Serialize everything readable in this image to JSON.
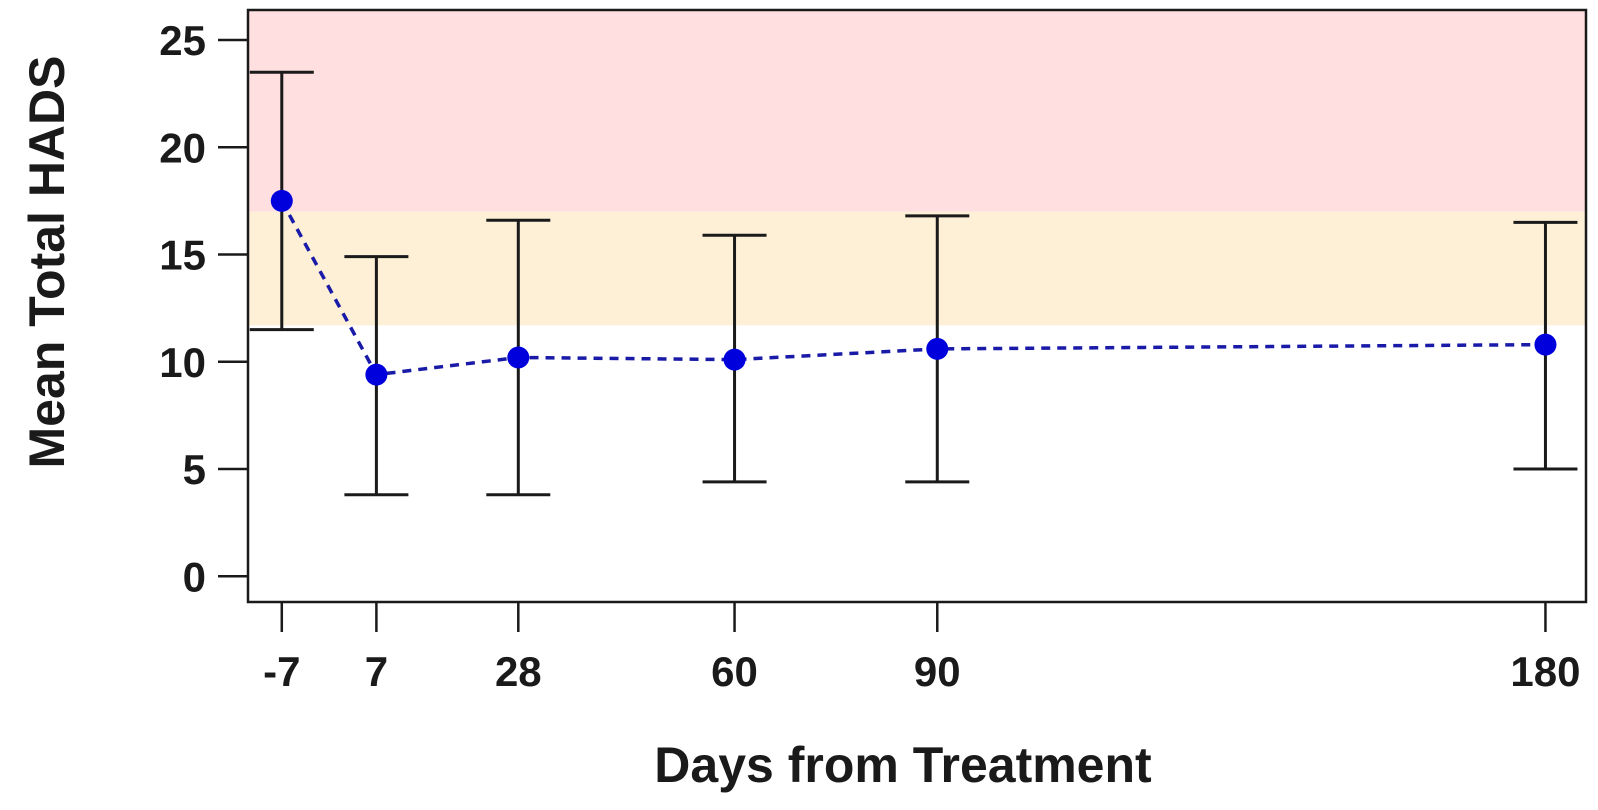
{
  "chart_data": {
    "type": "line",
    "title": "",
    "xlabel": "Days from Treatment",
    "ylabel": "Mean Total HADS",
    "x": [
      -7,
      7,
      28,
      60,
      90,
      180
    ],
    "x_tick_labels": [
      "-7",
      "7",
      "28",
      "60",
      "90",
      "180"
    ],
    "y_ticks": [
      0,
      5,
      10,
      15,
      20,
      25
    ],
    "y_tick_labels": [
      "0",
      "5",
      "10",
      "15",
      "20",
      "25"
    ],
    "xlim": [
      -12,
      186
    ],
    "ylim": [
      -1.2,
      26.4
    ],
    "series": [
      {
        "values": [
          17.5,
          9.4,
          10.2,
          10.1,
          10.6,
          10.8
        ],
        "error_upper": [
          23.5,
          14.9,
          16.6,
          15.9,
          16.8,
          16.5
        ],
        "error_lower": [
          11.5,
          3.8,
          3.8,
          4.4,
          4.4,
          5.0
        ],
        "line_style": "dashed",
        "color": "#1a1aa8",
        "marker_color": "#0000dd"
      }
    ],
    "bands": [
      {
        "from": 17.0,
        "to": 26.4,
        "color": "#ffdfe0"
      },
      {
        "from": 11.7,
        "to": 17.0,
        "color": "#fdf0d6"
      }
    ],
    "grid": false,
    "error_bar_color": "#1a1a1a"
  }
}
